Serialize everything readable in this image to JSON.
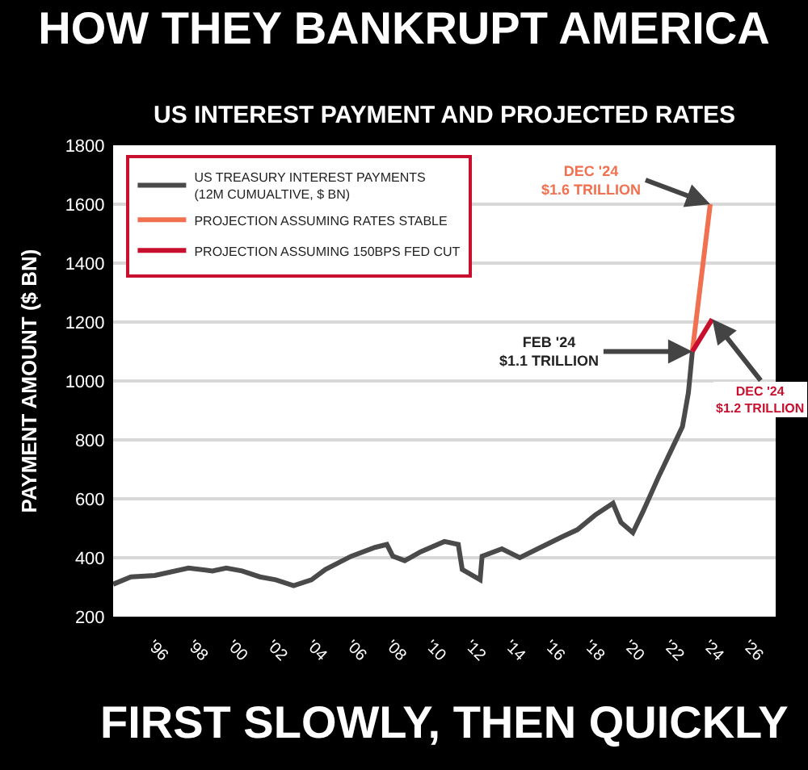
{
  "chart_data": {
    "type": "line",
    "title": "HOW THEY BANKRUPT AMERICA",
    "subtitle": "US INTEREST PAYMENT AND PROJECTED RATES",
    "ylabel": "PAYMENT AMOUNT ($ BN)",
    "xlim": [
      1994.0,
      2027.4
    ],
    "ylim": [
      200,
      1800
    ],
    "xticks": [
      {
        "value": 1996,
        "label": "'96"
      },
      {
        "value": 1998,
        "label": "'98"
      },
      {
        "value": 2000,
        "label": "'00"
      },
      {
        "value": 2002,
        "label": "'02"
      },
      {
        "value": 2004,
        "label": "'04"
      },
      {
        "value": 2006,
        "label": "'06"
      },
      {
        "value": 2008,
        "label": "'08"
      },
      {
        "value": 2010,
        "label": "'10"
      },
      {
        "value": 2012,
        "label": "'12"
      },
      {
        "value": 2014,
        "label": "'14"
      },
      {
        "value": 2016,
        "label": "'16"
      },
      {
        "value": 2018,
        "label": "'18"
      },
      {
        "value": 2020,
        "label": "'20"
      },
      {
        "value": 2022,
        "label": "'22"
      },
      {
        "value": 2024,
        "label": "'24"
      },
      {
        "value": 2026,
        "label": "'26"
      }
    ],
    "yticks": [
      200,
      400,
      600,
      800,
      1000,
      1200,
      1400,
      1600,
      1800
    ],
    "grid": "y",
    "legend": "top left",
    "marker": "none",
    "line_style": "solid",
    "series": [
      {
        "name": "US TREASURY INTEREST PAYMENTS\n(12M CUMUALTIVE, $ BN)",
        "color": "#4a4a4a",
        "x": [
          1994.0,
          1994.9,
          1996.1,
          1997.8,
          1999.0,
          1999.7,
          2000.5,
          2001.4,
          2002.2,
          2003.1,
          2004.0,
          2004.7,
          2006.0,
          2007.2,
          2007.8,
          2008.1,
          2008.7,
          2009.5,
          2010.7,
          2011.4,
          2011.6,
          2012.5,
          2012.6,
          2013.6,
          2014.5,
          2015.4,
          2016.6,
          2017.4,
          2018.3,
          2019.2,
          2019.6,
          2020.2,
          2020.7,
          2021.5,
          2022.1,
          2022.7,
          2023.0,
          2023.2
        ],
        "values": [
          310,
          335,
          340,
          365,
          355,
          365,
          355,
          335,
          325,
          305,
          325,
          360,
          405,
          435,
          445,
          405,
          390,
          420,
          455,
          445,
          360,
          325,
          405,
          430,
          400,
          430,
          470,
          495,
          545,
          585,
          520,
          485,
          555,
          675,
          760,
          845,
          960,
          1100
        ]
      },
      {
        "name": "PROJECTION ASSUMING RATES STABLE",
        "color": "#f07050",
        "x": [
          2023.2,
          2024.1
        ],
        "values": [
          1100,
          1600
        ]
      },
      {
        "name": "PROJECTION ASSUMING 150BPS FED CUT",
        "color": "#c8102e",
        "x": [
          2023.2,
          2024.2
        ],
        "values": [
          1100,
          1210
        ]
      }
    ],
    "annotations": [
      {
        "text": "FEB '24\n$1.1 TRILLION",
        "x": 2023.2,
        "y": 1100
      },
      {
        "text": "DEC '24\n$1.6 TRILLION",
        "x": 2024.1,
        "y": 1600
      },
      {
        "text": "DEC '24\n$1.2 TRILLION",
        "x": 2024.2,
        "y": 1210
      },
      "FIRST SLOWLY, THEN QUICKLY"
    ]
  }
}
